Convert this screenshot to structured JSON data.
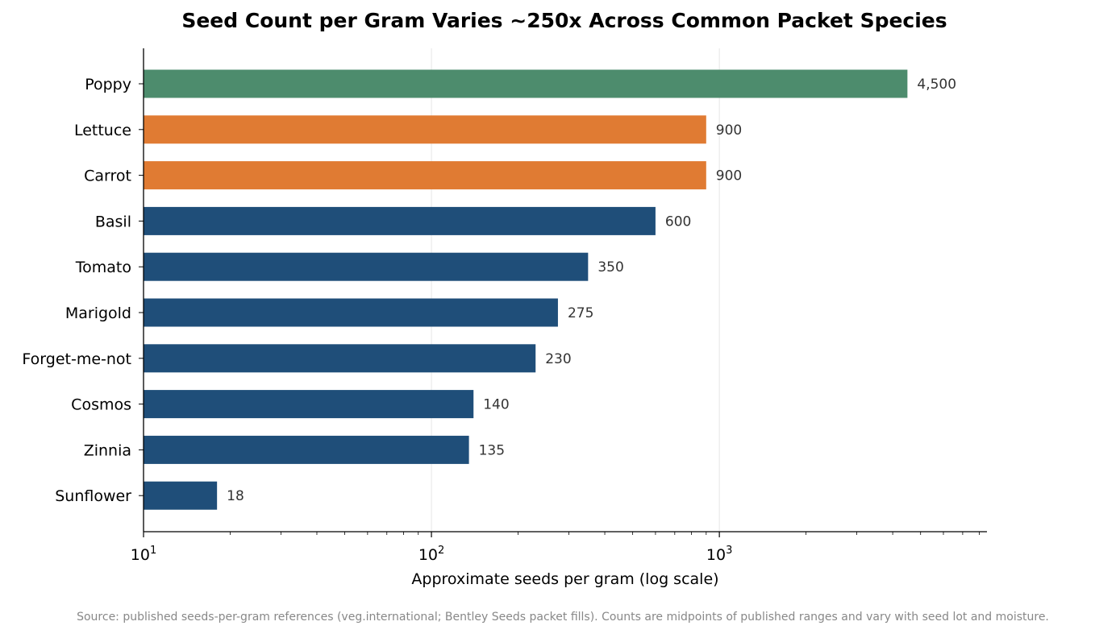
{
  "chart_data": {
    "type": "bar",
    "orientation": "horizontal",
    "title": "Seed Count per Gram Varies ~250x Across Common Packet Species",
    "xlabel": "Approximate seeds per gram (log scale)",
    "ylabel": "",
    "x_scale": "log",
    "xlim": [
      10,
      8500
    ],
    "x_ticks": [
      10,
      100,
      1000
    ],
    "x_tick_labels": [
      {
        "base": "10",
        "exp": "1"
      },
      {
        "base": "10",
        "exp": "2"
      },
      {
        "base": "10",
        "exp": "3"
      }
    ],
    "grid": "vertical major",
    "categories": [
      "Poppy",
      "Lettuce",
      "Carrot",
      "Basil",
      "Tomato",
      "Marigold",
      "Forget-me-not",
      "Cosmos",
      "Zinnia",
      "Sunflower"
    ],
    "values": [
      4500,
      900,
      900,
      600,
      350,
      275,
      230,
      140,
      135,
      18
    ],
    "value_labels": [
      "4,500",
      "900",
      "900",
      "600",
      "350",
      "275",
      "230",
      "140",
      "135",
      "18"
    ],
    "colors": [
      "#4d8c6d",
      "#e07b33",
      "#e07b33",
      "#1f4e79",
      "#1f4e79",
      "#1f4e79",
      "#1f4e79",
      "#1f4e79",
      "#1f4e79",
      "#1f4e79"
    ],
    "source": "Source: published seeds-per-gram references (veg.international; Bentley Seeds packet fills). Counts are midpoints of published ranges and vary with seed lot and moisture."
  }
}
